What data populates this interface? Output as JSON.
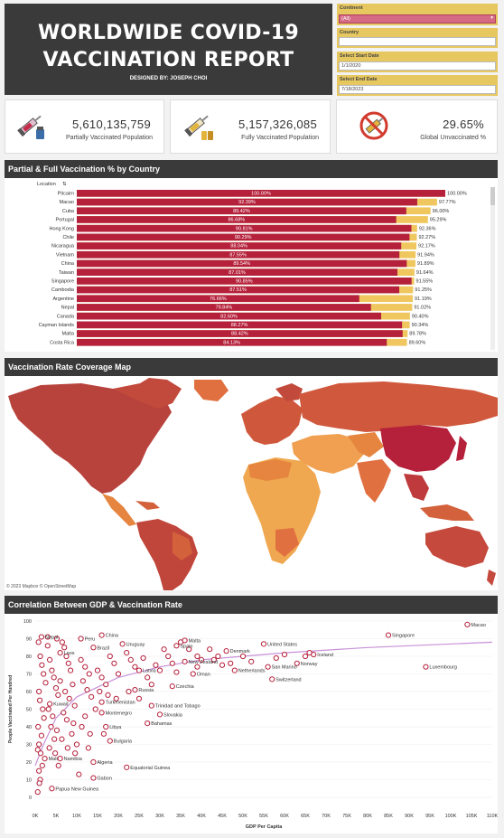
{
  "header": {
    "title_line1": "WORLDWIDE COVID-19",
    "title_line2": "VACCINATION REPORT",
    "designer": "DESIGNED BY: JOSEPH CHOI"
  },
  "filters": {
    "continent_label": "Continent",
    "continent_value": "(All)",
    "country_label": "Country",
    "country_value": "",
    "start_label": "Select Start Date",
    "start_value": "1/1/2020",
    "end_label": "Select End Date",
    "end_value": "7/18/2023"
  },
  "kpis": [
    {
      "value": "5,610,135,759",
      "caption": "Partially Vaccinated Population",
      "icon": "syringe-vial-icon"
    },
    {
      "value": "5,157,326,085",
      "caption": "Fully Vaccinated Population",
      "icon": "syringe-vials-icon"
    },
    {
      "value": "29.65%",
      "caption": "Global Unvaccinated %",
      "icon": "no-syringe-icon"
    }
  ],
  "sections": {
    "bar_title": "Partial & Full Vaccination % by Country",
    "map_title": "Vaccination Rate Coverage Map",
    "scatter_title": "Correlation Between GDP & Vaccination Rate",
    "map_credit": "© 2023 Mapbox  © OpenStreetMap"
  },
  "colors": {
    "full": "#b5203b",
    "partial": "#efc75e",
    "header_bg": "#3a3a3a",
    "trend": "#c890d8"
  },
  "chart_data": [
    {
      "type": "bar",
      "title": "Partial & Full Vaccination % by Country",
      "category_header": "Location",
      "categories": [
        "Pitcairn",
        "Macao",
        "Cuba",
        "Portugal",
        "Hong Kong",
        "Chile",
        "Nicaragua",
        "Vietnam",
        "China",
        "Taiwan",
        "Singapore",
        "Cambodia",
        "Argentine",
        "Nepal",
        "Canada",
        "Cayman Islands",
        "Malta",
        "Costa Rica"
      ],
      "series": [
        {
          "name": "Full",
          "values": [
            100.0,
            92.39,
            89.42,
            86.68,
            90.81,
            90.29,
            88.04,
            87.55,
            89.54,
            87.01,
            90.85,
            87.51,
            76.66,
            79.84,
            82.6,
            88.27,
            88.42,
            84.13
          ]
        },
        {
          "name": "Partial",
          "values": [
            100.0,
            97.77,
            96.0,
            95.29,
            92.36,
            92.27,
            92.17,
            91.94,
            91.89,
            91.64,
            91.55,
            91.25,
            91.19,
            91.02,
            90.4,
            90.34,
            89.78,
            89.6
          ]
        }
      ],
      "xlim": [
        0,
        100
      ]
    },
    {
      "type": "scatter",
      "title": "Correlation Between GDP & Vaccination Rate",
      "xlabel": "GDP Per Capita",
      "ylabel": "People Vaccinated Per Hundred",
      "xlim": [
        0,
        110000
      ],
      "ylim": [
        0,
        100
      ],
      "x_ticks": [
        "0K",
        "5K",
        "10K",
        "15K",
        "20K",
        "25K",
        "30K",
        "35K",
        "40K",
        "45K",
        "50K",
        "55K",
        "60K",
        "65K",
        "70K",
        "75K",
        "80K",
        "85K",
        "90K",
        "95K",
        "100K",
        "105K",
        "110K"
      ],
      "y_ticks": [
        "0",
        "10",
        "20",
        "30",
        "40",
        "50",
        "60",
        "70",
        "80",
        "90",
        "100"
      ],
      "labeled_points": [
        {
          "name": "Nepal",
          "x": 1500,
          "y": 91
        },
        {
          "name": "Peru",
          "x": 11000,
          "y": 90
        },
        {
          "name": "China",
          "x": 16000,
          "y": 92
        },
        {
          "name": "Malta",
          "x": 36000,
          "y": 89
        },
        {
          "name": "Laos",
          "x": 6000,
          "y": 82
        },
        {
          "name": "Brazil",
          "x": 14000,
          "y": 85
        },
        {
          "name": "Uruguay",
          "x": 21000,
          "y": 87
        },
        {
          "name": "Spain",
          "x": 34000,
          "y": 86
        },
        {
          "name": "United States",
          "x": 55000,
          "y": 87
        },
        {
          "name": "Singapore",
          "x": 85000,
          "y": 92
        },
        {
          "name": "Macao",
          "x": 104000,
          "y": 98
        },
        {
          "name": "New Zealand",
          "x": 36000,
          "y": 77
        },
        {
          "name": "Denmark",
          "x": 46000,
          "y": 83
        },
        {
          "name": "Iceland",
          "x": 67000,
          "y": 81
        },
        {
          "name": "Latvia",
          "x": 25000,
          "y": 72
        },
        {
          "name": "Oman",
          "x": 38000,
          "y": 70
        },
        {
          "name": "Netherlands",
          "x": 48000,
          "y": 72
        },
        {
          "name": "San Marino",
          "x": 56000,
          "y": 74
        },
        {
          "name": "Norway",
          "x": 63000,
          "y": 76
        },
        {
          "name": "Luxembourg",
          "x": 94000,
          "y": 74
        },
        {
          "name": "Switzerland",
          "x": 57000,
          "y": 67
        },
        {
          "name": "Russia",
          "x": 24000,
          "y": 61
        },
        {
          "name": "Czechia",
          "x": 33000,
          "y": 63
        },
        {
          "name": "Kuwait",
          "x": 3500,
          "y": 53
        },
        {
          "name": "Turkmenistan",
          "x": 16000,
          "y": 54
        },
        {
          "name": "Trinidad and Tobago",
          "x": 28000,
          "y": 52
        },
        {
          "name": "Montenegro",
          "x": 16000,
          "y": 48
        },
        {
          "name": "Slovakia",
          "x": 30000,
          "y": 47
        },
        {
          "name": "Bahamas",
          "x": 27000,
          "y": 42
        },
        {
          "name": "Libya",
          "x": 17000,
          "y": 40
        },
        {
          "name": "Bulgaria",
          "x": 18000,
          "y": 32
        },
        {
          "name": "Mali",
          "x": 2300,
          "y": 22
        },
        {
          "name": "Namibia",
          "x": 6000,
          "y": 22
        },
        {
          "name": "Algeria",
          "x": 14000,
          "y": 20
        },
        {
          "name": "Equatorial Guinea",
          "x": 22000,
          "y": 17
        },
        {
          "name": "Gabon",
          "x": 14000,
          "y": 11
        },
        {
          "name": "Papua New Guinea",
          "x": 4000,
          "y": 5
        }
      ],
      "extra_points": [
        [
          800,
          88
        ],
        [
          1200,
          80
        ],
        [
          1600,
          75
        ],
        [
          2000,
          70
        ],
        [
          2500,
          65
        ],
        [
          900,
          60
        ],
        [
          1100,
          55
        ],
        [
          1800,
          50
        ],
        [
          2100,
          45
        ],
        [
          700,
          40
        ],
        [
          1500,
          35
        ],
        [
          900,
          30
        ],
        [
          600,
          27
        ],
        [
          1300,
          25
        ],
        [
          1700,
          18
        ],
        [
          900,
          15
        ],
        [
          1200,
          10
        ],
        [
          600,
          3
        ],
        [
          1000,
          8
        ],
        [
          3000,
          86
        ],
        [
          3500,
          78
        ],
        [
          4000,
          72
        ],
        [
          4500,
          68
        ],
        [
          5000,
          62
        ],
        [
          5500,
          58
        ],
        [
          3200,
          50
        ],
        [
          4200,
          46
        ],
        [
          3800,
          40
        ],
        [
          5200,
          38
        ],
        [
          4600,
          33
        ],
        [
          3400,
          28
        ],
        [
          4800,
          25
        ],
        [
          5600,
          18
        ],
        [
          3000,
          91
        ],
        [
          5200,
          90
        ],
        [
          6500,
          88
        ],
        [
          7000,
          85
        ],
        [
          7500,
          80
        ],
        [
          8000,
          76
        ],
        [
          8500,
          72
        ],
        [
          6000,
          66
        ],
        [
          9000,
          64
        ],
        [
          7200,
          60
        ],
        [
          8200,
          56
        ],
        [
          9500,
          52
        ],
        [
          6800,
          48
        ],
        [
          7600,
          44
        ],
        [
          9200,
          42
        ],
        [
          8800,
          36
        ],
        [
          6400,
          33
        ],
        [
          10000,
          30
        ],
        [
          7800,
          28
        ],
        [
          9600,
          25
        ],
        [
          10500,
          13
        ],
        [
          11000,
          78
        ],
        [
          12000,
          74
        ],
        [
          13000,
          70
        ],
        [
          11500,
          66
        ],
        [
          12500,
          61
        ],
        [
          13500,
          57
        ],
        [
          14500,
          50
        ],
        [
          12000,
          46
        ],
        [
          11200,
          40
        ],
        [
          13200,
          36
        ],
        [
          15000,
          72
        ],
        [
          16000,
          68
        ],
        [
          17000,
          64
        ],
        [
          18000,
          80
        ],
        [
          19000,
          76
        ],
        [
          20000,
          70
        ],
        [
          15500,
          60
        ],
        [
          17500,
          58
        ],
        [
          19500,
          56
        ],
        [
          12800,
          28
        ],
        [
          16500,
          36
        ],
        [
          22000,
          82
        ],
        [
          23000,
          78
        ],
        [
          24000,
          74
        ],
        [
          26000,
          79
        ],
        [
          27000,
          68
        ],
        [
          28000,
          64
        ],
        [
          22500,
          60
        ],
        [
          25000,
          56
        ],
        [
          29000,
          75
        ],
        [
          30000,
          72
        ],
        [
          31000,
          84
        ],
        [
          32000,
          80
        ],
        [
          33000,
          76
        ],
        [
          34000,
          71
        ],
        [
          35000,
          88
        ],
        [
          37000,
          84
        ],
        [
          39000,
          80
        ],
        [
          40000,
          78
        ],
        [
          42000,
          84
        ],
        [
          44000,
          80
        ],
        [
          45000,
          75
        ],
        [
          47000,
          76
        ],
        [
          50000,
          80
        ],
        [
          52000,
          77
        ],
        [
          58000,
          79
        ],
        [
          60000,
          81
        ],
        [
          65000,
          80
        ],
        [
          66000,
          82
        ],
        [
          39000,
          74
        ],
        [
          43000,
          78
        ]
      ],
      "trend": [
        [
          0,
          18
        ],
        [
          2000,
          30
        ],
        [
          5000,
          45
        ],
        [
          10000,
          57
        ],
        [
          20000,
          68
        ],
        [
          30000,
          74
        ],
        [
          40000,
          78
        ],
        [
          60000,
          82
        ],
        [
          80000,
          85
        ],
        [
          110000,
          88
        ]
      ]
    }
  ]
}
